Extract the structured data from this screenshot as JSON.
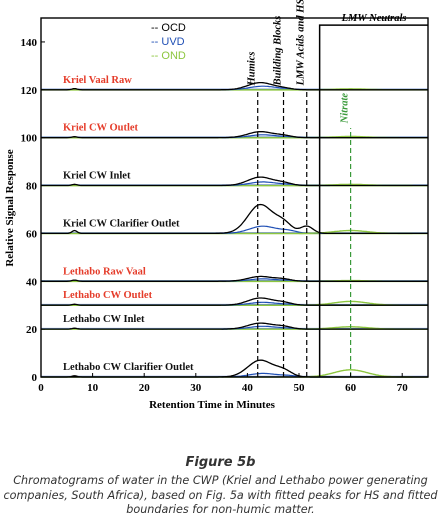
{
  "chart_data": {
    "type": "line",
    "title": "",
    "xlabel": "Retention Time in Minutes",
    "ylabel": "Relative Signal Response",
    "xlim": [
      0,
      75
    ],
    "ylim": [
      0,
      150
    ],
    "x_ticks": [
      "0",
      "10",
      "20",
      "30",
      "40",
      "50",
      "60",
      "70"
    ],
    "y_ticks": [
      "0",
      "20",
      "40",
      "60",
      "80",
      "100",
      "120",
      "140"
    ],
    "legend": {
      "position": "top-center",
      "items": [
        {
          "label": "OCD",
          "color": "#000000"
        },
        {
          "label": "UVD",
          "color": "#1f4fb5"
        },
        {
          "label": "OND",
          "color": "#8dc63f"
        }
      ]
    },
    "samples": [
      {
        "label": "Kriel Vaal Raw",
        "color": "#e53c2a",
        "baseline": 120,
        "ocd": {
          "a": 3,
          "b": 0.6,
          "c": 0,
          "d": 0.5
        },
        "uvd": {
          "a": 1.5,
          "b": 0.3
        },
        "ond": 0.4
      },
      {
        "label": "Kriel CW Outlet",
        "color": "#e53c2a",
        "baseline": 100,
        "ocd": {
          "a": 2.5,
          "b": 0.8,
          "c": 0,
          "d": 0.4
        },
        "uvd": {
          "a": 1.2,
          "b": 0.3
        },
        "ond": 0.5
      },
      {
        "label": "Kriel CW Inlet",
        "color": "#111111",
        "baseline": 80,
        "ocd": {
          "a": 3.5,
          "b": 1.0,
          "c": 0,
          "d": 0.5
        },
        "uvd": {
          "a": 1.5,
          "b": 0.4
        },
        "ond": 0.5
      },
      {
        "label": "Kriel CW Clarifier Outlet",
        "color": "#111111",
        "baseline": 60,
        "ocd": {
          "a": 12,
          "b": 4.0,
          "c": 3.0,
          "d": 1.2
        },
        "uvd": {
          "a": 3.0,
          "b": 1.0
        },
        "ond": 1.2
      },
      {
        "label": "Lethabo Raw Vaal",
        "color": "#e53c2a",
        "baseline": 40,
        "ocd": {
          "a": 2.0,
          "b": 0.8,
          "c": 0,
          "d": 0.5
        },
        "uvd": {
          "a": 1.0,
          "b": 0.3
        },
        "ond": 0.3
      },
      {
        "label": "Lethabo CW Outlet",
        "color": "#e53c2a",
        "baseline": 30,
        "ocd": {
          "a": 3.0,
          "b": 1.0,
          "c": 0,
          "d": 0.4
        },
        "uvd": {
          "a": 1.2,
          "b": 0.3
        },
        "ond": 1.6
      },
      {
        "label": "Lethabo CW Inlet",
        "color": "#111111",
        "baseline": 20,
        "ocd": {
          "a": 2.5,
          "b": 1.0,
          "c": 0,
          "d": 0.4
        },
        "uvd": {
          "a": 1.2,
          "b": 0.3
        },
        "ond": 1.0
      },
      {
        "label": "Lethabo CW Clarifier Outlet",
        "color": "#111111",
        "baseline": 0,
        "ocd": {
          "a": 7.0,
          "b": 2.5,
          "c": 0,
          "d": 0.5
        },
        "uvd": {
          "a": 1.5,
          "b": 0.5
        },
        "ond": 3.0
      }
    ],
    "fraction_boundaries": [
      {
        "label": "Humics",
        "x": 42
      },
      {
        "label": "Building Blocks",
        "x": 47
      },
      {
        "label": "LMW Acids and HS",
        "x": 51.5
      }
    ],
    "lmw_neutrals": {
      "label": "LMW Neutrals",
      "x_start": 54,
      "y_top": 147
    },
    "nitrate": {
      "label": "Nitrate",
      "x": 60,
      "color": "#3a9a3a"
    }
  },
  "caption": {
    "title": "Figure 5b",
    "body": "Chromatograms of water in the CWP (Kriel and Lethabo power generating companies, South Africa), based on Fig. 5a with fitted peaks for HS and fitted boundaries for non-humic matter."
  }
}
